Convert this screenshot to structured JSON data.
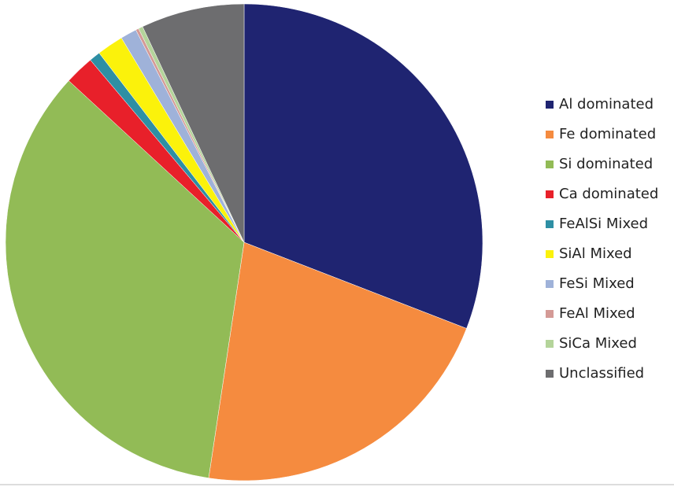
{
  "chart_data": {
    "type": "pie",
    "categories": [
      "Al dominated",
      "Fe dominated",
      "Si dominated",
      "Ca dominated",
      "FeAlSi Mixed",
      "SiAl Mixed",
      "FeSi Mixed",
      "FeAl Mixed",
      "SiCa Mixed",
      "Unclassified"
    ],
    "values": [
      30.9,
      21.5,
      34.5,
      2.0,
      0.75,
      1.8,
      1.1,
      0.2,
      0.3,
      7.0
    ],
    "colors": [
      "#1f2471",
      "#f58b3f",
      "#92bb56",
      "#e8202a",
      "#2e8fa4",
      "#fbf20b",
      "#9fb2d9",
      "#d49a96",
      "#b4d49a",
      "#6d6d6f"
    ],
    "legend": "right"
  }
}
